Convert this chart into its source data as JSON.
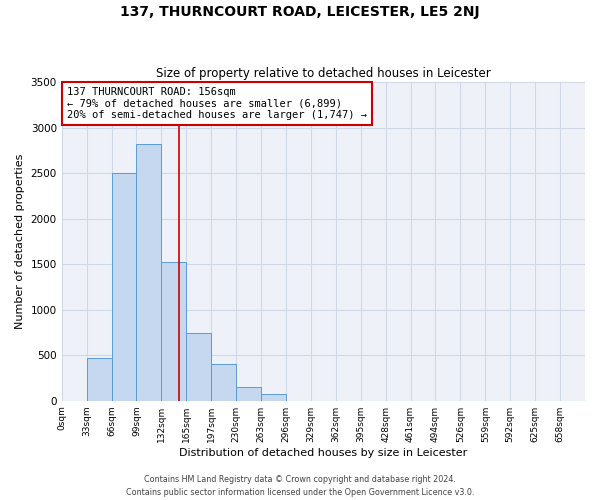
{
  "title": "137, THURNCOURT ROAD, LEICESTER, LE5 2NJ",
  "subtitle": "Size of property relative to detached houses in Leicester",
  "xlabel": "Distribution of detached houses by size in Leicester",
  "ylabel": "Number of detached properties",
  "bar_left_edges": [
    0,
    33,
    66,
    99,
    132,
    165,
    198,
    231,
    264,
    297,
    330,
    363,
    396,
    429,
    462,
    495,
    528,
    561,
    594,
    627
  ],
  "bar_heights": [
    0,
    470,
    2500,
    2820,
    1520,
    740,
    400,
    155,
    70,
    0,
    0,
    0,
    0,
    0,
    0,
    0,
    0,
    0,
    0,
    0
  ],
  "bin_width": 33,
  "bar_facecolor": "#c5d8f0",
  "bar_edgecolor": "#5b9bd5",
  "grid_color": "#d0d8e8",
  "bg_color": "#eef2f8",
  "vline_x": 156,
  "vline_color": "#cc0000",
  "annotation_line1": "137 THURNCOURT ROAD: 156sqm",
  "annotation_line2": "← 79% of detached houses are smaller (6,899)",
  "annotation_line3": "20% of semi-detached houses are larger (1,747) →",
  "annotation_box_edgecolor": "#cc0000",
  "ylim": [
    0,
    3500
  ],
  "yticks": [
    0,
    500,
    1000,
    1500,
    2000,
    2500,
    3000,
    3500
  ],
  "xtick_labels": [
    "0sqm",
    "33sqm",
    "66sqm",
    "99sqm",
    "132sqm",
    "165sqm",
    "197sqm",
    "230sqm",
    "263sqm",
    "296sqm",
    "329sqm",
    "362sqm",
    "395sqm",
    "428sqm",
    "461sqm",
    "494sqm",
    "526sqm",
    "559sqm",
    "592sqm",
    "625sqm",
    "658sqm"
  ],
  "footer_line1": "Contains HM Land Registry data © Crown copyright and database right 2024.",
  "footer_line2": "Contains public sector information licensed under the Open Government Licence v3.0."
}
